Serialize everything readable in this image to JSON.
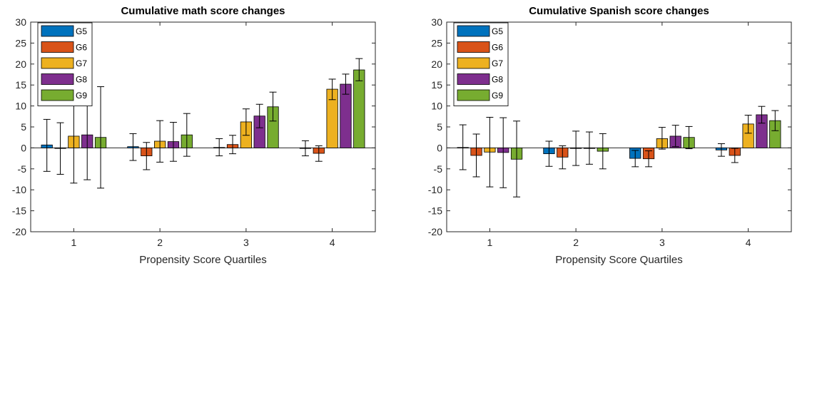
{
  "chart_data": [
    {
      "type": "bar",
      "title": "Cumulative math score changes",
      "xlabel": "Propensity Score Quartiles",
      "ylabel": "",
      "categories": [
        "1",
        "2",
        "3",
        "4"
      ],
      "ylim": [
        -20,
        30
      ],
      "yticks": [
        -20,
        -15,
        -10,
        -5,
        0,
        5,
        10,
        15,
        20,
        25,
        30
      ],
      "grid": false,
      "legend": "top-left",
      "series": [
        {
          "name": "G5",
          "color": "#0072BD",
          "values": [
            0.7,
            0.3,
            0.1,
            -0.1
          ],
          "err_low": [
            -5.6,
            -3.0,
            -1.9,
            -1.9
          ],
          "err_high": [
            6.8,
            3.4,
            2.2,
            1.7
          ]
        },
        {
          "name": "G6",
          "color": "#D95319",
          "values": [
            -0.1,
            -1.9,
            0.8,
            -1.3
          ],
          "err_low": [
            -6.3,
            -5.2,
            -1.4,
            -3.2
          ],
          "err_high": [
            6.0,
            1.3,
            3.0,
            0.5
          ]
        },
        {
          "name": "G7",
          "color": "#EDB120",
          "values": [
            2.8,
            1.6,
            6.2,
            14.0
          ],
          "err_low": [
            -8.4,
            -3.4,
            3.0,
            11.5
          ],
          "err_high": [
            13.9,
            6.5,
            9.3,
            16.4
          ]
        },
        {
          "name": "G8",
          "color": "#7E2F8E",
          "values": [
            3.1,
            1.5,
            7.6,
            15.2
          ],
          "err_low": [
            -7.6,
            -3.2,
            4.8,
            12.8
          ],
          "err_high": [
            13.8,
            6.1,
            10.4,
            17.6
          ]
        },
        {
          "name": "G9",
          "color": "#77AC30",
          "values": [
            2.5,
            3.1,
            9.8,
            18.6
          ],
          "err_low": [
            -9.6,
            -2.0,
            6.4,
            16.0
          ],
          "err_high": [
            14.6,
            8.2,
            13.3,
            21.3
          ]
        }
      ]
    },
    {
      "type": "bar",
      "title": "Cumulative Spanish score changes",
      "xlabel": "Propensity Score Quartiles",
      "ylabel": "",
      "categories": [
        "1",
        "2",
        "3",
        "4"
      ],
      "ylim": [
        -20,
        30
      ],
      "yticks": [
        -20,
        -15,
        -10,
        -5,
        0,
        5,
        10,
        15,
        20,
        25,
        30
      ],
      "grid": false,
      "legend": "top-left",
      "series": [
        {
          "name": "G5",
          "color": "#0072BD",
          "values": [
            0.1,
            -1.4,
            -2.5,
            -0.5
          ],
          "err_low": [
            -5.2,
            -4.4,
            -4.5,
            -2.0
          ],
          "err_high": [
            5.5,
            1.6,
            -0.6,
            1.0
          ]
        },
        {
          "name": "G6",
          "color": "#D95319",
          "values": [
            -1.8,
            -2.2,
            -2.6,
            -1.8
          ],
          "err_low": [
            -6.9,
            -5.0,
            -4.5,
            -3.5
          ],
          "err_high": [
            3.3,
            0.5,
            -0.7,
            -0.1
          ]
        },
        {
          "name": "G7",
          "color": "#EDB120",
          "values": [
            -1.0,
            -0.1,
            2.2,
            5.7
          ],
          "err_low": [
            -9.3,
            -4.2,
            -0.3,
            3.5
          ],
          "err_high": [
            7.3,
            4.0,
            4.9,
            7.8
          ]
        },
        {
          "name": "G8",
          "color": "#7E2F8E",
          "values": [
            -1.1,
            0.0,
            2.8,
            7.9
          ],
          "err_low": [
            -9.5,
            -3.9,
            0.3,
            5.9
          ],
          "err_high": [
            7.2,
            3.8,
            5.4,
            9.9
          ]
        },
        {
          "name": "G9",
          "color": "#77AC30",
          "values": [
            -2.7,
            -0.8,
            2.5,
            6.5
          ],
          "err_low": [
            -11.7,
            -5.0,
            -0.2,
            4.1
          ],
          "err_high": [
            6.4,
            3.4,
            5.1,
            8.9
          ]
        }
      ]
    }
  ]
}
